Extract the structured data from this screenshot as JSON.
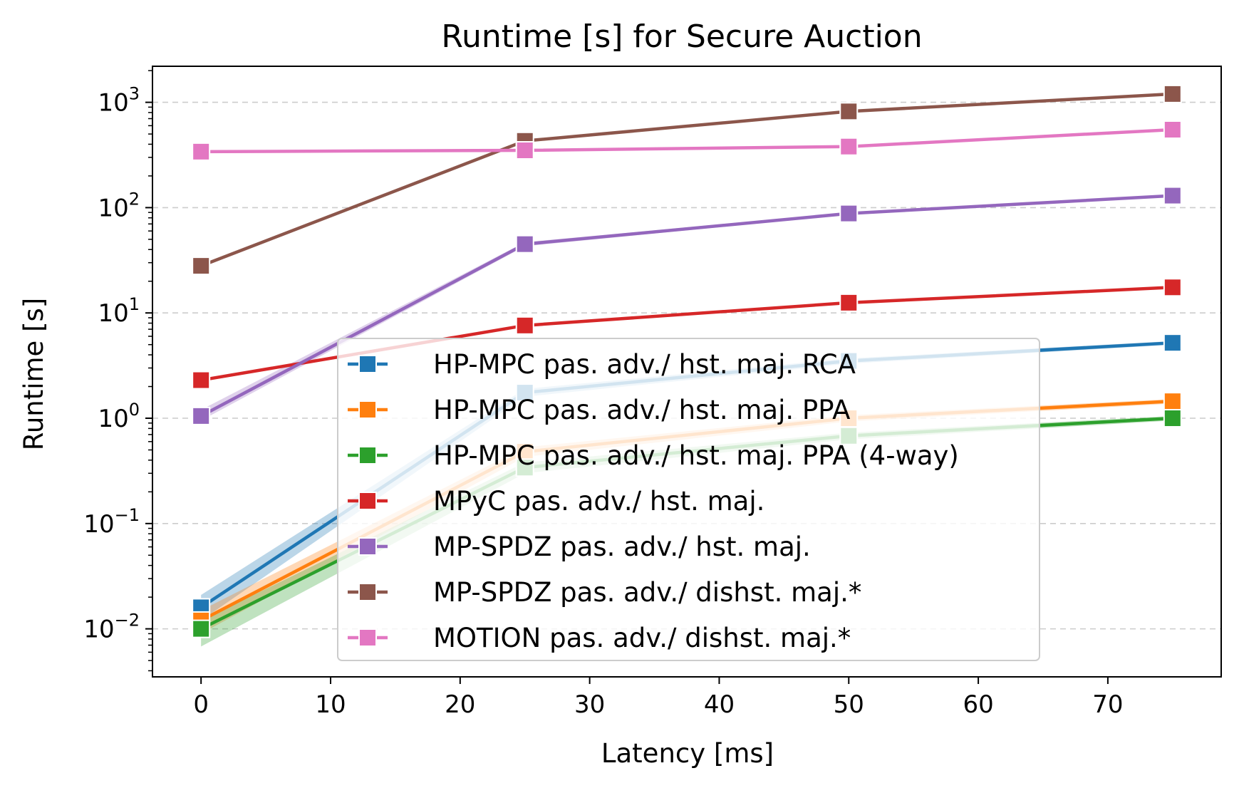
{
  "chart_data": {
    "type": "line",
    "title": "Runtime [s] for Secure Auction",
    "xlabel": "Latency [ms]",
    "ylabel": "Runtime [s]",
    "x": [
      0,
      25,
      50,
      75
    ],
    "xlim": [
      -3.75,
      78.75
    ],
    "xticks": [
      0,
      10,
      20,
      30,
      40,
      50,
      60,
      70
    ],
    "yscale": "log",
    "ylim": [
      0.0035,
      2200
    ],
    "yticks": [
      {
        "value": 0.01,
        "base": "10",
        "exp": "−2"
      },
      {
        "value": 0.1,
        "base": "10",
        "exp": "−1"
      },
      {
        "value": 1,
        "base": "10",
        "exp": "0"
      },
      {
        "value": 10,
        "base": "10",
        "exp": "1"
      },
      {
        "value": 100,
        "base": "10",
        "exp": "2"
      },
      {
        "value": 1000,
        "base": "10",
        "exp": "3"
      }
    ],
    "grid": "y-dashed",
    "legend_position": "lower-center",
    "series": [
      {
        "name": "HP-MPC pas. adv./ hst. maj. RCA",
        "color": "#1f77b4",
        "values": [
          0.016,
          1.75,
          3.5,
          5.2
        ],
        "band_low": [
          0.012,
          1.6,
          3.3,
          5.0
        ],
        "band_high": [
          0.021,
          1.9,
          3.7,
          5.4
        ]
      },
      {
        "name": "HP-MPC pas. adv./ hst. maj. PPA",
        "color": "#ff7f0e",
        "values": [
          0.012,
          0.48,
          1.0,
          1.45
        ],
        "band_low": [
          0.009,
          0.43,
          0.93,
          1.38
        ],
        "band_high": [
          0.015,
          0.53,
          1.07,
          1.52
        ]
      },
      {
        "name": "HP-MPC pas. adv./ hst. maj. PPA (4-way)",
        "color": "#2ca02c",
        "values": [
          0.01,
          0.34,
          0.68,
          1.0
        ],
        "band_low": [
          0.0068,
          0.3,
          0.63,
          0.95
        ],
        "band_high": [
          0.012,
          0.38,
          0.73,
          1.05
        ]
      },
      {
        "name": "MPyC pas. adv./ hst. maj.",
        "color": "#d62728",
        "values": [
          2.3,
          7.6,
          12.5,
          17.5
        ]
      },
      {
        "name": "MP-SPDZ pas. adv./ hst. maj.",
        "color": "#9467bd",
        "values": [
          1.05,
          45,
          88,
          130
        ],
        "band_low": [
          0.95,
          43,
          86,
          127
        ],
        "band_high": [
          1.2,
          47,
          90,
          133
        ]
      },
      {
        "name": "MP-SPDZ pas. adv./ dishst. maj.*",
        "color": "#8c564b",
        "values": [
          28,
          430,
          820,
          1200
        ]
      },
      {
        "name": "MOTION pas. adv./ dishst. maj.*",
        "color": "#e377c2",
        "values": [
          340,
          350,
          380,
          550
        ]
      }
    ]
  }
}
